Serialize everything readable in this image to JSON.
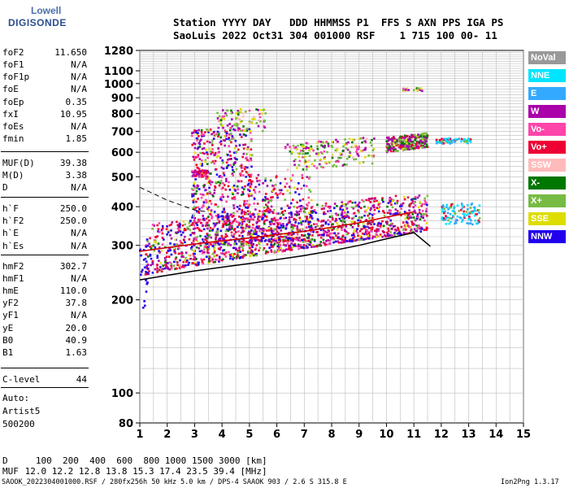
{
  "logo": {
    "top": "Lowell",
    "main": "DIGISONDE"
  },
  "header": {
    "line1": "Station YYYY DAY   DDD HHMMSS P1  FFS S AXN PPS IGA PS",
    "line2": "SaoLuis 2022 Oct31 304 001000 RSF    1 715 100 00- 11"
  },
  "params": [
    {
      "label": "foF2",
      "value": "11.650"
    },
    {
      "label": "foF1",
      "value": "N/A"
    },
    {
      "label": "foF1p",
      "value": "N/A"
    },
    {
      "label": "foE",
      "value": "N/A"
    },
    {
      "label": "foEp",
      "value": "0.35"
    },
    {
      "label": "fxI",
      "value": "10.95"
    },
    {
      "label": "foEs",
      "value": "N/A"
    },
    {
      "label": "fmin",
      "value": "1.85"
    },
    {
      "label": "MUF(D)",
      "value": "39.38"
    },
    {
      "label": "M(D)",
      "value": "3.38"
    },
    {
      "label": "D",
      "value": "N/A"
    },
    {
      "label": "h`F",
      "value": "250.0"
    },
    {
      "label": "h`F2",
      "value": "250.0"
    },
    {
      "label": "h`E",
      "value": "N/A"
    },
    {
      "label": "h`Es",
      "value": "N/A"
    },
    {
      "label": "hmF2",
      "value": "302.7"
    },
    {
      "label": "hmF1",
      "value": "N/A"
    },
    {
      "label": "hmE",
      "value": "110.0"
    },
    {
      "label": "yF2",
      "value": "37.8"
    },
    {
      "label": "yF1",
      "value": "N/A"
    },
    {
      "label": "yE",
      "value": "20.0"
    },
    {
      "label": "B0",
      "value": "40.9"
    },
    {
      "label": "B1",
      "value": "1.63"
    },
    {
      "label": "C-level",
      "value": "44"
    }
  ],
  "auto": [
    "Auto:",
    "Artist5",
    "500200"
  ],
  "legend": [
    {
      "label": "NoVal",
      "bg": "#999999",
      "fg": "#ffffff"
    },
    {
      "label": "NNE",
      "bg": "#00e5ff",
      "fg": "#ffffff"
    },
    {
      "label": "E",
      "bg": "#33aaff",
      "fg": "#ffffff"
    },
    {
      "label": "W",
      "bg": "#aa00aa",
      "fg": "#ffffff"
    },
    {
      "label": "Vo-",
      "bg": "#ff44aa",
      "fg": "#ffffff"
    },
    {
      "label": "Vo+",
      "bg": "#ee0033",
      "fg": "#ffffff"
    },
    {
      "label": "SSW",
      "bg": "#ffbbbb",
      "fg": "#ffffff"
    },
    {
      "label": "X-",
      "bg": "#007700",
      "fg": "#ffffff"
    },
    {
      "label": "X+",
      "bg": "#77bb44",
      "fg": "#ffffff"
    },
    {
      "label": "SSE",
      "bg": "#dddd00",
      "fg": "#ffffff"
    },
    {
      "label": "NNW",
      "bg": "#2200ee",
      "fg": "#ffffff"
    }
  ],
  "muf_table": {
    "d_label": "D",
    "d_values": "   100  200  400  600  800 1000 1500 3000 [km]",
    "muf_label": "MUF",
    "muf_values": " 12.0 12.2 12.8 13.8 15.3 17.4 23.5 39.4 [MHz]"
  },
  "footer": {
    "left": "SAOOK_2022304001000.RSF / 280fx256h 50 kHz 5.0 km / DPS-4 SAAOK 903 / 2.6 S 315.8 E",
    "right": "Ion2Png 1.3.17"
  },
  "chart_data": {
    "type": "scatter",
    "title": "",
    "xlabel": "",
    "ylabel": "",
    "xlim": [
      1,
      15
    ],
    "ylim": [
      80,
      1280
    ],
    "y_scale": "log",
    "x_ticks": [
      1,
      2,
      3,
      4,
      5,
      6,
      7,
      8,
      9,
      10,
      11,
      12,
      13,
      14,
      15
    ],
    "y_ticks": [
      80,
      100,
      200,
      300,
      400,
      500,
      600,
      700,
      800,
      900,
      1000,
      1100,
      1280
    ],
    "grid": true,
    "echo_clusters": [
      {
        "name": "o-trace low",
        "x": [
          1.3,
          2.0,
          3.0,
          4.0,
          5.0,
          6.0,
          7.0,
          8.0,
          9.0,
          10.0,
          11.0
        ],
        "y": [
          265,
          278,
          285,
          290,
          295,
          300,
          305,
          315,
          320,
          330,
          345
        ]
      },
      {
        "name": "multipath 2F",
        "x": [
          10.0,
          10.5,
          11.0,
          11.4
        ],
        "y": [
          615,
          625,
          640,
          655
        ]
      },
      {
        "name": "x-trace high",
        "x": [
          12.0,
          12.5,
          13.0
        ],
        "y": [
          385,
          395,
          360
        ]
      }
    ],
    "profile_curve": {
      "x": [
        1.0,
        2.0,
        3.0,
        4.0,
        5.0,
        6.0,
        7.0,
        8.0,
        9.0,
        10.0,
        11.0,
        11.6
      ],
      "y": [
        232,
        240,
        248,
        255,
        262,
        270,
        278,
        288,
        300,
        315,
        330,
        298
      ]
    },
    "dashed_curve": {
      "x": [
        1.0,
        2.0,
        3.0,
        3.5
      ],
      "y": [
        462,
        420,
        390,
        385
      ]
    }
  }
}
